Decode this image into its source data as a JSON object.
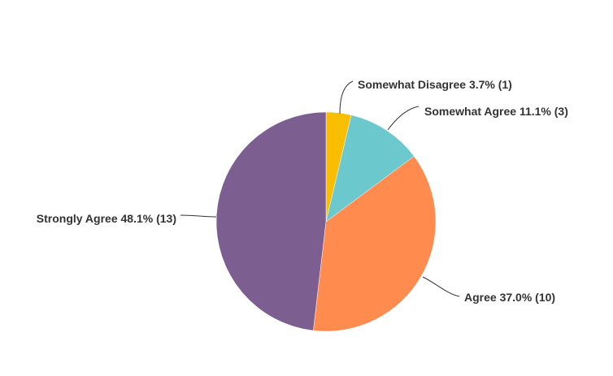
{
  "chart_data": {
    "type": "pie",
    "start_angle": "12 o'clock, clockwise",
    "slices": [
      {
        "label": "Somewhat Disagree",
        "percent": 3.7,
        "count": 1,
        "color": "#F9BE00",
        "text": "Somewhat Disagree 3.7% (1)"
      },
      {
        "label": "Somewhat Agree",
        "percent": 11.1,
        "count": 3,
        "color": "#6BC8CD",
        "text": "Somewhat Agree 11.1% (3)"
      },
      {
        "label": "Agree",
        "percent": 37.0,
        "count": 10,
        "color": "#FF8B4F",
        "text": "Agree 37.0% (10)"
      },
      {
        "label": "Strongly Agree",
        "percent": 48.1,
        "count": 13,
        "color": "#7D5E90",
        "text": "Strongly Agree 48.1% (13)"
      }
    ]
  }
}
